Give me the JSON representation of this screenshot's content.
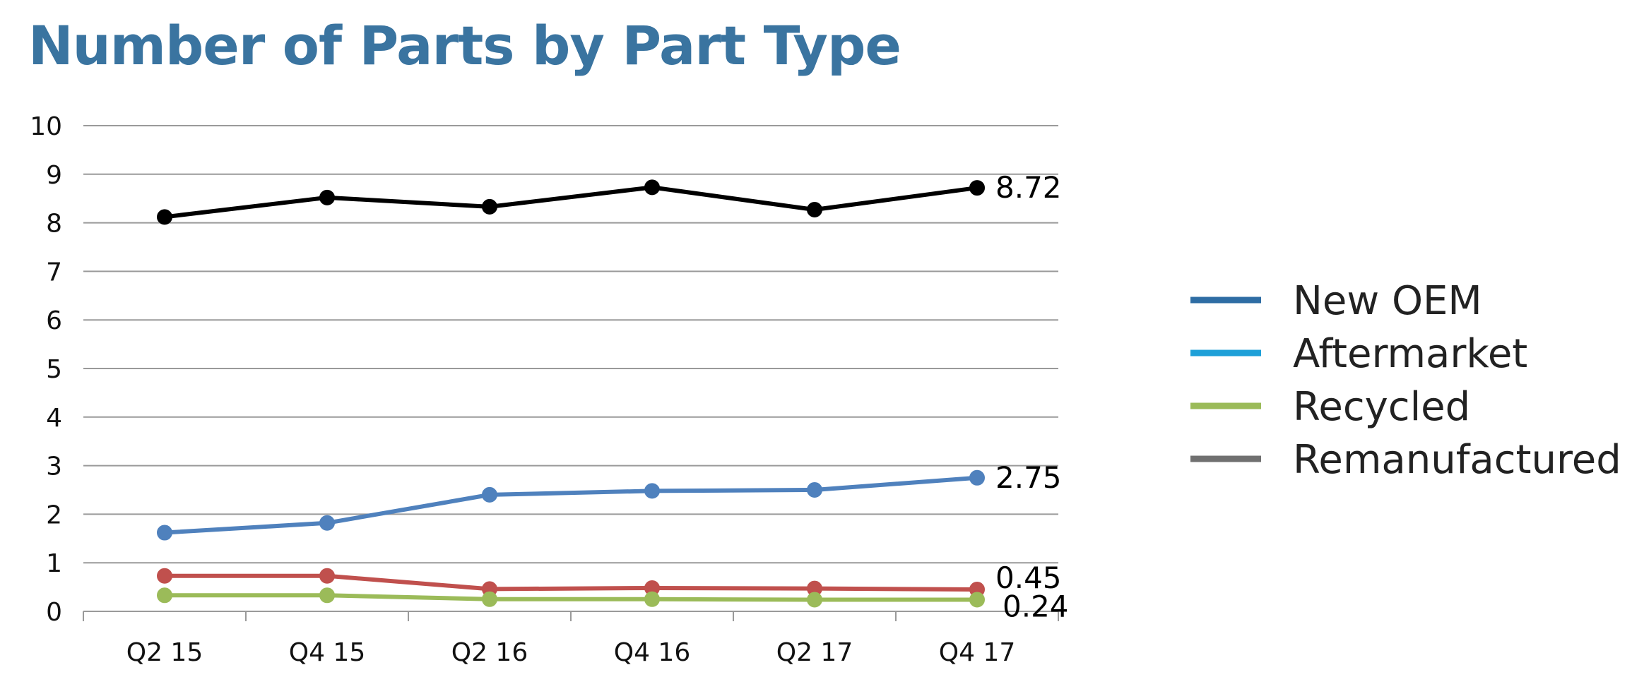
{
  "chart_data": {
    "type": "line",
    "title": "Number of Parts by Part Type",
    "categories": [
      "Q2 15",
      "Q4 15",
      "Q2 16",
      "Q4 16",
      "Q2 17",
      "Q4 17"
    ],
    "ylim": [
      0,
      10
    ],
    "yticks": [
      0,
      1,
      2,
      3,
      4,
      5,
      6,
      7,
      8,
      9,
      10
    ],
    "grid": true,
    "legend_position": "right",
    "series": [
      {
        "color": "#000000",
        "values": [
          8.12,
          8.52,
          8.33,
          8.73,
          8.27,
          8.72
        ],
        "end_label": "8.72"
      },
      {
        "color": "#4f81bd",
        "values": [
          1.62,
          1.82,
          2.4,
          2.48,
          2.5,
          2.75
        ],
        "end_label": "2.75"
      },
      {
        "color": "#c0504d",
        "values": [
          0.73,
          0.73,
          0.46,
          0.48,
          0.47,
          0.45
        ],
        "end_label": "0.45"
      },
      {
        "color": "#9bbb59",
        "values": [
          0.33,
          0.33,
          0.25,
          0.25,
          0.24,
          0.24
        ],
        "end_label": "0.24"
      }
    ],
    "legend": [
      {
        "name": "New OEM",
        "color": "#2e6da4"
      },
      {
        "name": "Aftermarket",
        "color": "#1ea0d8"
      },
      {
        "name": "Recycled",
        "color": "#9bbb59"
      },
      {
        "name": "Remanufactured",
        "color": "#707070"
      }
    ]
  }
}
